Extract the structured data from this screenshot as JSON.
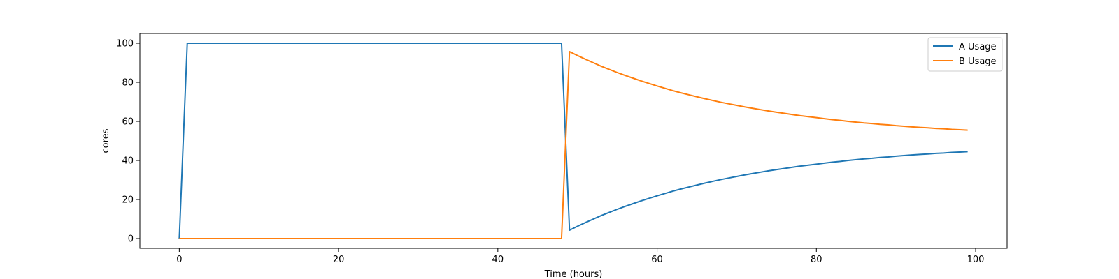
{
  "chart_data": {
    "type": "line",
    "title": "",
    "xlabel": "Time (hours)",
    "ylabel": "cores",
    "xlim": [
      -4.95,
      103.95
    ],
    "ylim": [
      -5,
      105
    ],
    "xticks": [
      0,
      20,
      40,
      60,
      80,
      100
    ],
    "yticks": [
      0,
      20,
      40,
      60,
      80,
      100
    ],
    "grid": false,
    "legend_position": "top-right",
    "series": [
      {
        "name": "A Usage",
        "color": "#1f77b4",
        "segments": [
          {
            "x": [
              0,
              1,
              48
            ],
            "y": [
              0,
              100,
              100
            ]
          },
          {
            "x": [
              49,
              50,
              51,
              52,
              53,
              54,
              55,
              56,
              57,
              58,
              59,
              60,
              61,
              62,
              63,
              64,
              65,
              66,
              67,
              68,
              69,
              70,
              71,
              72,
              73,
              74,
              75,
              76,
              77,
              78,
              79,
              80,
              81,
              82,
              83,
              84,
              85,
              86,
              87,
              88,
              89,
              90,
              91,
              92,
              93,
              94,
              95,
              96,
              97,
              98,
              99
            ],
            "y": [
              4.3,
              6.3,
              8.2,
              10.0,
              11.8,
              13.4,
              15.0,
              16.5,
              17.9,
              19.3,
              20.6,
              21.9,
              23.1,
              24.3,
              25.4,
              26.4,
              27.4,
              28.4,
              29.3,
              30.2,
              31.0,
              31.8,
              32.6,
              33.3,
              34.0,
              34.7,
              35.3,
              35.9,
              36.5,
              37.1,
              37.6,
              38.1,
              38.6,
              39.1,
              39.5,
              40.0,
              40.4,
              40.8,
              41.1,
              41.5,
              41.8,
              42.2,
              42.5,
              42.8,
              43.1,
              43.3,
              43.6,
              43.8,
              44.1,
              44.3,
              44.5
            ]
          }
        ]
      },
      {
        "name": "B Usage",
        "color": "#ff7f0e",
        "segments": [
          {
            "x": [
              0,
              48
            ],
            "y": [
              0,
              0
            ]
          },
          {
            "x": [
              49,
              50,
              51,
              52,
              53,
              54,
              55,
              56,
              57,
              58,
              59,
              60,
              61,
              62,
              63,
              64,
              65,
              66,
              67,
              68,
              69,
              70,
              71,
              72,
              73,
              74,
              75,
              76,
              77,
              78,
              79,
              80,
              81,
              82,
              83,
              84,
              85,
              86,
              87,
              88,
              89,
              90,
              91,
              92,
              93,
              94,
              95,
              96,
              97,
              98,
              99
            ],
            "y": [
              95.7,
              93.7,
              91.8,
              90.0,
              88.2,
              86.6,
              85.0,
              83.5,
              82.1,
              80.7,
              79.4,
              78.1,
              76.9,
              75.7,
              74.6,
              73.6,
              72.6,
              71.6,
              70.7,
              69.8,
              69.0,
              68.2,
              67.4,
              66.7,
              66.0,
              65.3,
              64.7,
              64.1,
              63.5,
              62.9,
              62.4,
              61.9,
              61.4,
              60.9,
              60.5,
              60.0,
              59.6,
              59.2,
              58.9,
              58.5,
              58.2,
              57.8,
              57.5,
              57.2,
              56.9,
              56.7,
              56.4,
              56.2,
              55.9,
              55.7,
              55.5
            ]
          }
        ]
      }
    ]
  }
}
